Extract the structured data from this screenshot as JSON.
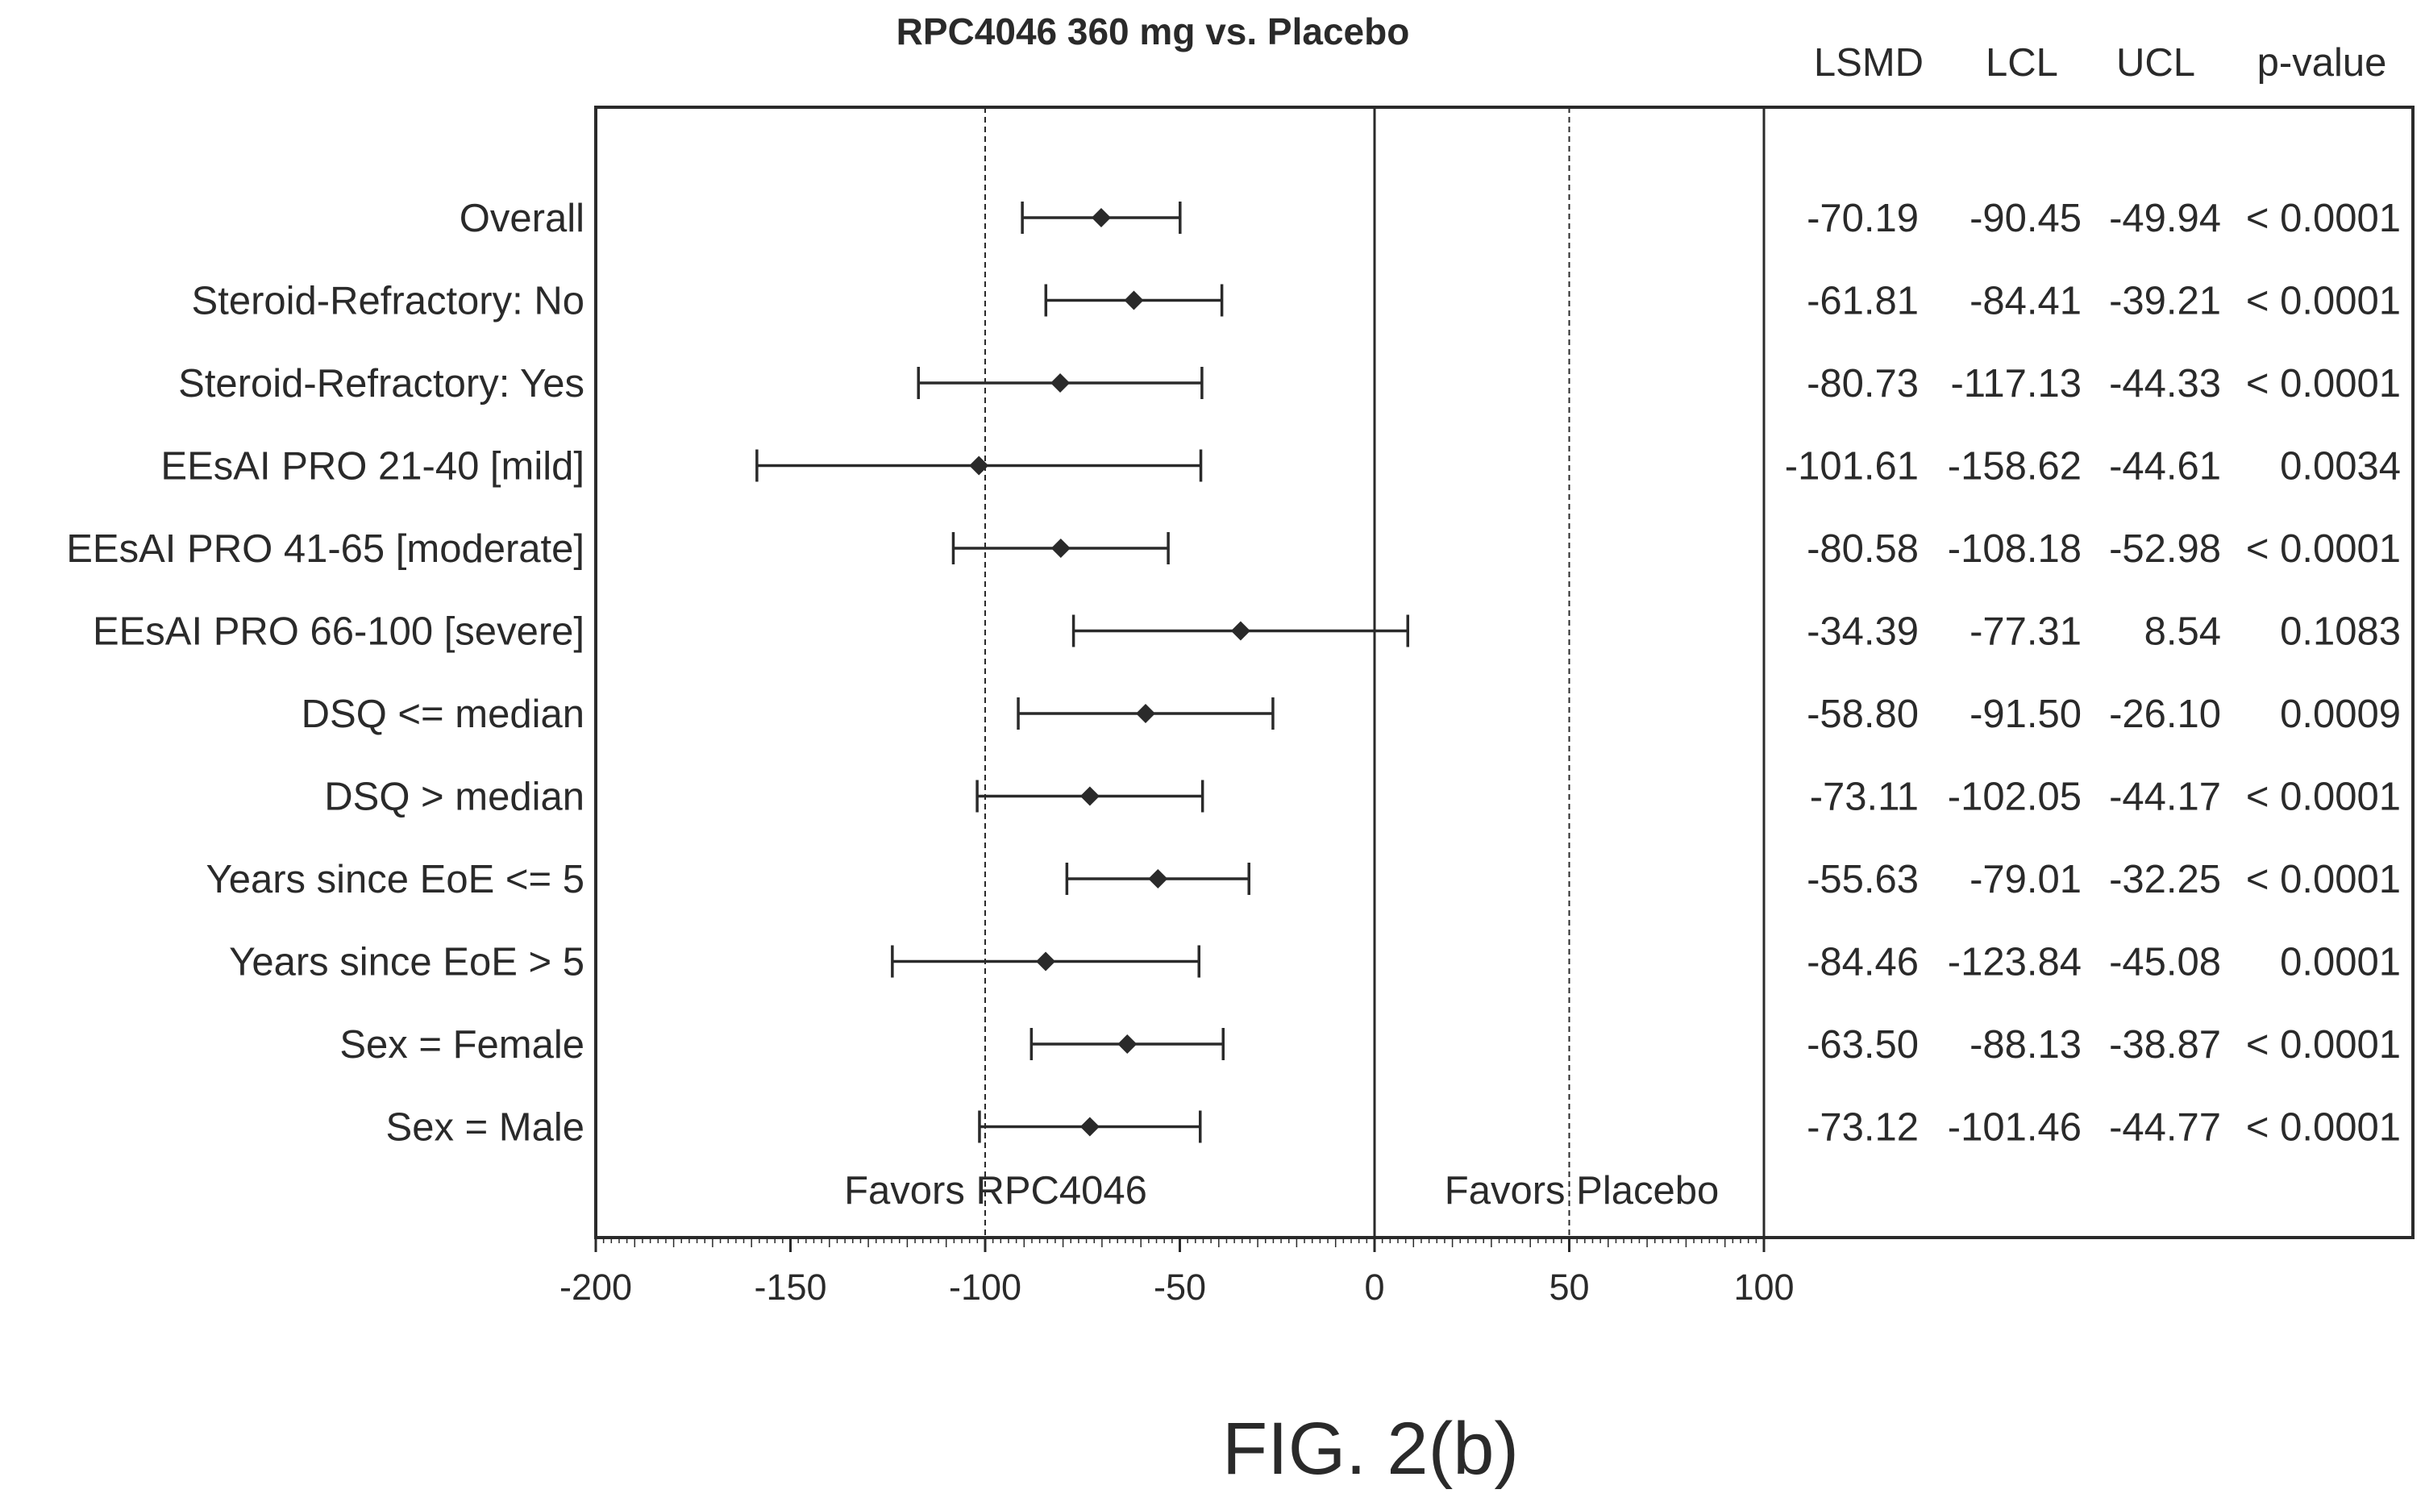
{
  "chart_data": {
    "type": "forest",
    "title": "RPC4046 360 mg vs. Placebo",
    "figure_caption": "FIG. 2(b)",
    "columns": [
      "LSMD",
      "LCL",
      "UCL",
      "p-value"
    ],
    "xlim": [
      -200,
      100
    ],
    "xticks": [
      "-200",
      "-150",
      "-100",
      "-50",
      "0",
      "50",
      "100"
    ],
    "xtick_values": [
      -200,
      -150,
      -100,
      -50,
      0,
      50,
      100
    ],
    "reference_lines": [
      -100,
      0,
      50
    ],
    "favors_left": "Favors RPC4046",
    "favors_right": "Favors Placebo",
    "rows": [
      {
        "label": "Overall",
        "lsmd": -70.19,
        "lcl": -90.45,
        "ucl": -49.94,
        "lsmd_text": "-70.19",
        "lcl_text": "-90.45",
        "ucl_text": "-49.94",
        "p_text": "< 0.0001"
      },
      {
        "label": "Steroid-Refractory: No",
        "lsmd": -61.81,
        "lcl": -84.41,
        "ucl": -39.21,
        "lsmd_text": "-61.81",
        "lcl_text": "-84.41",
        "ucl_text": "-39.21",
        "p_text": "< 0.0001"
      },
      {
        "label": "Steroid-Refractory: Yes",
        "lsmd": -80.73,
        "lcl": -117.13,
        "ucl": -44.33,
        "lsmd_text": "-80.73",
        "lcl_text": "-117.13",
        "ucl_text": "-44.33",
        "p_text": "< 0.0001"
      },
      {
        "label": "EEsAI PRO 21-40 [mild]",
        "lsmd": -101.61,
        "lcl": -158.62,
        "ucl": -44.61,
        "lsmd_text": "-101.61",
        "lcl_text": "-158.62",
        "ucl_text": "-44.61",
        "p_text": "0.0034"
      },
      {
        "label": "EEsAI PRO 41-65 [moderate]",
        "lsmd": -80.58,
        "lcl": -108.18,
        "ucl": -52.98,
        "lsmd_text": "-80.58",
        "lcl_text": "-108.18",
        "ucl_text": "-52.98",
        "p_text": "< 0.0001"
      },
      {
        "label": "EEsAI PRO 66-100 [severe]",
        "lsmd": -34.39,
        "lcl": -77.31,
        "ucl": 8.54,
        "lsmd_text": "-34.39",
        "lcl_text": "-77.31",
        "ucl_text": "8.54",
        "p_text": "0.1083"
      },
      {
        "label": "DSQ <= median",
        "lsmd": -58.8,
        "lcl": -91.5,
        "ucl": -26.1,
        "lsmd_text": "-58.80",
        "lcl_text": "-91.50",
        "ucl_text": "-26.10",
        "p_text": "0.0009"
      },
      {
        "label": "DSQ > median",
        "lsmd": -73.11,
        "lcl": -102.05,
        "ucl": -44.17,
        "lsmd_text": "-73.11",
        "lcl_text": "-102.05",
        "ucl_text": "-44.17",
        "p_text": "< 0.0001"
      },
      {
        "label": "Years since EoE <= 5",
        "lsmd": -55.63,
        "lcl": -79.01,
        "ucl": -32.25,
        "lsmd_text": "-55.63",
        "lcl_text": "-79.01",
        "ucl_text": "-32.25",
        "p_text": "< 0.0001"
      },
      {
        "label": "Years since EoE > 5",
        "lsmd": -84.46,
        "lcl": -123.84,
        "ucl": -45.08,
        "lsmd_text": "-84.46",
        "lcl_text": "-123.84",
        "ucl_text": "-45.08",
        "p_text": "0.0001"
      },
      {
        "label": "Sex = Female",
        "lsmd": -63.5,
        "lcl": -88.13,
        "ucl": -38.87,
        "lsmd_text": "-63.50",
        "lcl_text": "-88.13",
        "ucl_text": "-38.87",
        "p_text": "< 0.0001"
      },
      {
        "label": "Sex = Male",
        "lsmd": -73.12,
        "lcl": -101.46,
        "ucl": -44.77,
        "lsmd_text": "-73.12",
        "lcl_text": "-101.46",
        "ucl_text": "-44.77",
        "p_text": "< 0.0001"
      }
    ],
    "colors": {
      "ink": "#2a2a2a",
      "background": "#ffffff"
    }
  }
}
